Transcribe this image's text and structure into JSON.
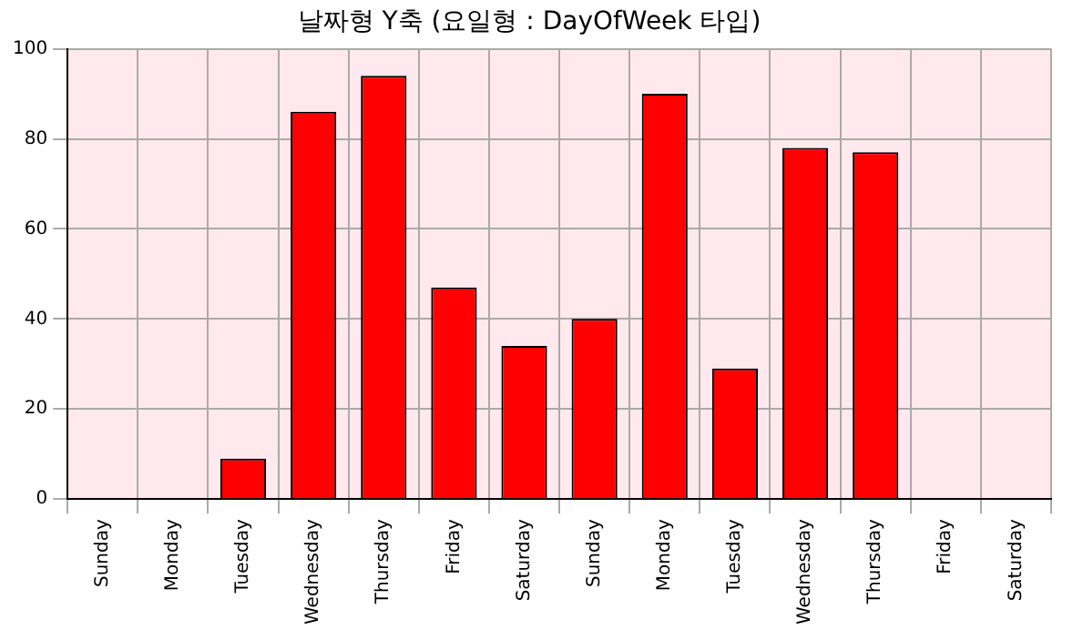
{
  "chart_data": {
    "type": "bar",
    "title": "날짜형 Y축 (요일형 : DayOfWeek 타입)",
    "categories": [
      "Sunday",
      "Monday",
      "Tuesday",
      "Wednesday",
      "Thursday",
      "Friday",
      "Saturday",
      "Sunday",
      "Monday",
      "Tuesday",
      "Wednesday",
      "Thursday",
      "Friday",
      "Saturday"
    ],
    "values": [
      0,
      0,
      9,
      86,
      94,
      47,
      34,
      40,
      90,
      29,
      78,
      77,
      0,
      0
    ],
    "color": "#ff0000",
    "ylim": [
      0,
      100
    ],
    "yticks": [
      0,
      20,
      40,
      60,
      80,
      100
    ],
    "grid": true
  }
}
